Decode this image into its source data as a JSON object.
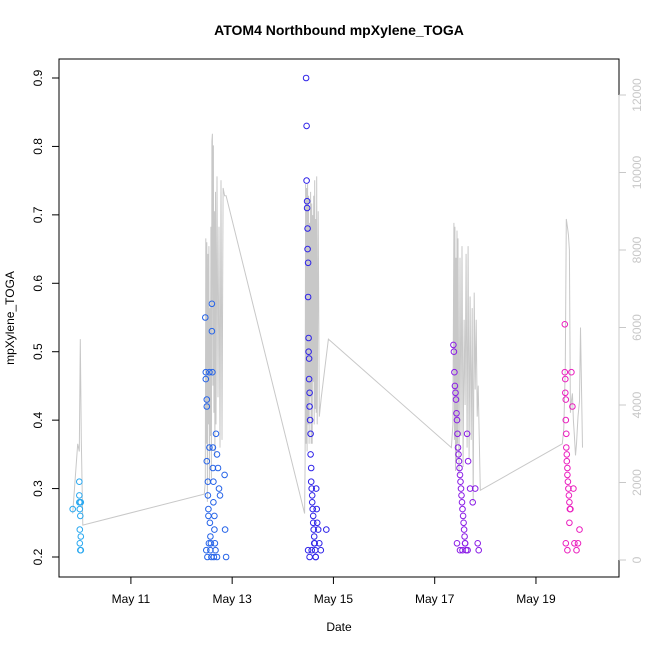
{
  "chart_data": {
    "type": "scatter",
    "title": "ATOM4 Northbound mpXylene_TOGA",
    "xlabel": "Date",
    "ylabel": "mpXylene_TOGA",
    "xlim": [
      9.58,
      20.64
    ],
    "ylim": [
      0.2,
      0.9
    ],
    "x_ticks": [
      {
        "value": 11,
        "label": "May 11"
      },
      {
        "value": 13,
        "label": "May 13"
      },
      {
        "value": 15,
        "label": "May 15"
      },
      {
        "value": 17,
        "label": "May 17"
      },
      {
        "value": 19,
        "label": "May 19"
      }
    ],
    "y_ticks": [
      0.2,
      0.3,
      0.4,
      0.5,
      0.6,
      0.7,
      0.8,
      0.9
    ],
    "y2_range": [
      0,
      12000
    ],
    "y2_ticks": [
      0,
      2000,
      4000,
      6000,
      8000,
      10000,
      12000
    ],
    "y2_note": "secondary axis for grey altitude trace (unlabeled)",
    "marker_colors_note": "points colored by time from light blue through blue and purple to magenta",
    "series": [
      {
        "name": "mpXylene_TOGA",
        "flights": [
          {
            "color": "#29a8f0",
            "x": [
              9.85,
              9.98,
              9.98,
              9.98,
              9.99,
              9.99,
              9.99,
              10.0,
              10.0,
              10.0,
              10.01,
              10.01,
              10.01
            ],
            "y": [
              0.27,
              0.31,
              0.29,
              0.28,
              0.27,
              0.24,
              0.22,
              0.21,
              0.28,
              0.26,
              0.28,
              0.23,
              0.21
            ]
          },
          {
            "color": "#2563e8",
            "x": [
              12.47,
              12.48,
              12.48,
              12.5,
              12.5,
              12.5,
              12.52,
              12.52,
              12.53,
              12.53,
              12.55,
              12.55,
              12.56,
              12.57,
              12.58,
              12.6,
              12.6,
              12.61,
              12.62,
              12.62,
              12.63,
              12.63,
              12.65,
              12.65,
              12.66,
              12.68,
              12.7,
              12.72,
              12.74,
              12.76,
              12.85,
              12.86,
              12.88,
              12.49,
              12.51,
              12.54,
              12.57,
              12.59,
              12.64,
              12.67,
              12.7
            ],
            "y": [
              0.55,
              0.47,
              0.46,
              0.43,
              0.42,
              0.34,
              0.31,
              0.29,
              0.27,
              0.26,
              0.47,
              0.36,
              0.25,
              0.23,
              0.22,
              0.57,
              0.53,
              0.47,
              0.36,
              0.33,
              0.31,
              0.28,
              0.26,
              0.24,
              0.22,
              0.38,
              0.35,
              0.33,
              0.3,
              0.29,
              0.32,
              0.24,
              0.2,
              0.21,
              0.2,
              0.22,
              0.21,
              0.2,
              0.2,
              0.21,
              0.2
            ]
          },
          {
            "color": "#2e22e8",
            "x": [
              14.46,
              14.47,
              14.47,
              14.48,
              14.48,
              14.49,
              14.49,
              14.5,
              14.5,
              14.51,
              14.51,
              14.52,
              14.52,
              14.53,
              14.53,
              14.54,
              14.55,
              14.55,
              14.56,
              14.56,
              14.57,
              14.58,
              14.58,
              14.59,
              14.6,
              14.6,
              14.61,
              14.62,
              14.63,
              14.64,
              14.65,
              14.66,
              14.67,
              14.68,
              14.7,
              14.72,
              14.75,
              14.86,
              14.5,
              14.53,
              14.57,
              14.62,
              14.65
            ],
            "y": [
              0.9,
              0.83,
              0.75,
              0.72,
              0.71,
              0.68,
              0.65,
              0.63,
              0.58,
              0.52,
              0.5,
              0.49,
              0.46,
              0.44,
              0.42,
              0.4,
              0.38,
              0.35,
              0.33,
              0.31,
              0.3,
              0.29,
              0.28,
              0.27,
              0.26,
              0.25,
              0.24,
              0.23,
              0.22,
              0.21,
              0.2,
              0.3,
              0.27,
              0.25,
              0.24,
              0.22,
              0.21,
              0.24,
              0.21,
              0.2,
              0.21,
              0.22,
              0.2
            ]
          },
          {
            "color": "#8a1ce6",
            "x": [
              17.37,
              17.38,
              17.39,
              17.4,
              17.41,
              17.42,
              17.43,
              17.44,
              17.45,
              17.46,
              17.47,
              17.48,
              17.49,
              17.5,
              17.51,
              17.52,
              17.53,
              17.54,
              17.55,
              17.56,
              17.57,
              17.58,
              17.59,
              17.6,
              17.62,
              17.64,
              17.66,
              17.7,
              17.75,
              17.8,
              17.85,
              17.87,
              17.44,
              17.5,
              17.55,
              17.6,
              17.65
            ],
            "y": [
              0.51,
              0.5,
              0.47,
              0.45,
              0.44,
              0.43,
              0.41,
              0.4,
              0.38,
              0.36,
              0.35,
              0.34,
              0.33,
              0.32,
              0.31,
              0.3,
              0.29,
              0.28,
              0.27,
              0.26,
              0.25,
              0.24,
              0.23,
              0.22,
              0.21,
              0.38,
              0.34,
              0.3,
              0.28,
              0.3,
              0.22,
              0.21,
              0.22,
              0.21,
              0.21,
              0.22,
              0.21
            ]
          },
          {
            "color": "#ea1ebe",
            "x": [
              19.57,
              19.57,
              19.58,
              19.58,
              19.59,
              19.59,
              19.6,
              19.6,
              19.61,
              19.61,
              19.62,
              19.62,
              19.63,
              19.64,
              19.65,
              19.66,
              19.67,
              19.68,
              19.7,
              19.72,
              19.74,
              19.76,
              19.8,
              19.83,
              19.86,
              19.59,
              19.62,
              19.66
            ],
            "y": [
              0.54,
              0.47,
              0.46,
              0.44,
              0.43,
              0.4,
              0.38,
              0.36,
              0.35,
              0.34,
              0.33,
              0.32,
              0.31,
              0.3,
              0.29,
              0.28,
              0.27,
              0.27,
              0.47,
              0.42,
              0.3,
              0.22,
              0.21,
              0.22,
              0.24,
              0.22,
              0.21,
              0.25
            ]
          }
        ]
      }
    ],
    "altitude_trace": {
      "color": "#c8c8c8",
      "x": [
        9.85,
        9.9,
        9.95,
        9.98,
        10.0,
        10.02,
        10.05,
        12.45,
        12.47,
        12.48,
        12.49,
        12.5,
        12.51,
        12.52,
        12.53,
        12.54,
        12.55,
        12.56,
        12.57,
        12.58,
        12.59,
        12.6,
        12.61,
        12.62,
        12.63,
        12.64,
        12.65,
        12.66,
        12.67,
        12.68,
        12.7,
        12.72,
        12.74,
        12.76,
        12.78,
        12.8,
        12.82,
        12.85,
        12.88,
        14.43,
        14.44,
        14.45,
        14.46,
        14.47,
        14.48,
        14.49,
        14.5,
        14.51,
        14.52,
        14.53,
        14.54,
        14.55,
        14.56,
        14.57,
        14.58,
        14.59,
        14.6,
        14.61,
        14.62,
        14.63,
        14.64,
        14.65,
        14.66,
        14.67,
        14.68,
        14.7,
        14.72,
        14.76,
        14.9,
        17.33,
        17.36,
        17.38,
        17.39,
        17.4,
        17.41,
        17.42,
        17.43,
        17.44,
        17.45,
        17.46,
        17.48,
        17.5,
        17.52,
        17.54,
        17.56,
        17.58,
        17.6,
        17.62,
        17.64,
        17.66,
        17.68,
        17.7,
        17.72,
        17.74,
        17.76,
        17.78,
        17.8,
        17.82,
        17.84,
        17.86,
        17.9,
        19.52,
        19.55,
        19.58,
        19.6,
        19.62,
        19.64,
        19.66,
        19.68,
        19.7,
        19.72,
        19.74,
        19.76,
        19.78,
        19.8,
        19.83,
        19.86,
        19.88,
        19.92
      ],
      "y": [
        1200,
        2100,
        3000,
        2800,
        5700,
        3100,
        900,
        1700,
        2000,
        8300,
        3000,
        8200,
        1500,
        7900,
        3500,
        8100,
        2000,
        6500,
        3200,
        8600,
        2100,
        10800,
        11000,
        4500,
        10700,
        3800,
        9000,
        2700,
        9500,
        3500,
        9900,
        4200,
        8600,
        2900,
        9800,
        3100,
        9600,
        9400,
        9400,
        1200,
        2500,
        9700,
        3000,
        9600,
        2800,
        9700,
        3500,
        9400,
        3000,
        8700,
        4200,
        9500,
        3000,
        9200,
        3000,
        8900,
        4600,
        9400,
        3500,
        9800,
        3900,
        8800,
        3800,
        9900,
        3500,
        9000,
        3700,
        4200,
        5700,
        2900,
        3500,
        8700,
        3100,
        8600,
        2300,
        7800,
        2600,
        8500,
        3000,
        8300,
        2200,
        7800,
        3200,
        8100,
        2400,
        6200,
        4000,
        7900,
        2900,
        8100,
        2600,
        6800,
        3100,
        6500,
        1500,
        6900,
        4400,
        6200,
        3700,
        4500,
        1800,
        3000,
        3400,
        5000,
        8800,
        8600,
        8400,
        8000,
        3800,
        4100,
        4300,
        3600,
        3200,
        2700,
        3000,
        3700,
        4100,
        6000,
        2900
      ]
    }
  }
}
